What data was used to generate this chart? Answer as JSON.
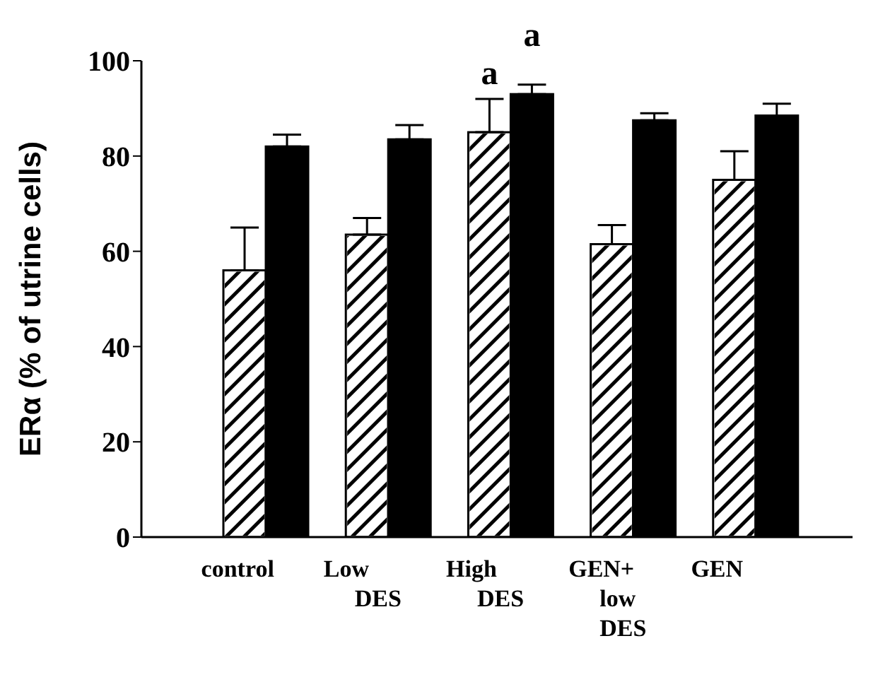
{
  "chart_data": {
    "type": "bar",
    "ylabel": "ERα (% of utrine cells)",
    "categories": [
      "control",
      "Low DES",
      "High DES",
      "GEN+ low DES",
      "GEN"
    ],
    "series": [
      {
        "color": "#ffffff",
        "values": [
          56,
          63.5,
          85,
          61.5,
          75
        ],
        "errors": [
          [
            56,
            65
          ],
          [
            63.5,
            67
          ],
          [
            85,
            92
          ],
          [
            61.5,
            65.5
          ],
          [
            75,
            81
          ]
        ]
      },
      {
        "color": "#000000",
        "values": [
          82,
          83.5,
          93,
          87.5,
          88.5
        ],
        "errors": [
          [
            82,
            84.5
          ],
          [
            83.5,
            86.5
          ],
          [
            93,
            95
          ],
          [
            87.5,
            89
          ],
          [
            88.5,
            91
          ]
        ]
      }
    ],
    "annotations": [
      {
        "text": "a",
        "x": "High DES",
        "y": 85
      },
      {
        "text": "a",
        "x": "High DES",
        "y": 93
      }
    ],
    "ylim": [
      0,
      100
    ],
    "yticks": [
      0,
      20,
      40,
      60,
      80,
      100
    ],
    "grid": false,
    "legend": false
  }
}
